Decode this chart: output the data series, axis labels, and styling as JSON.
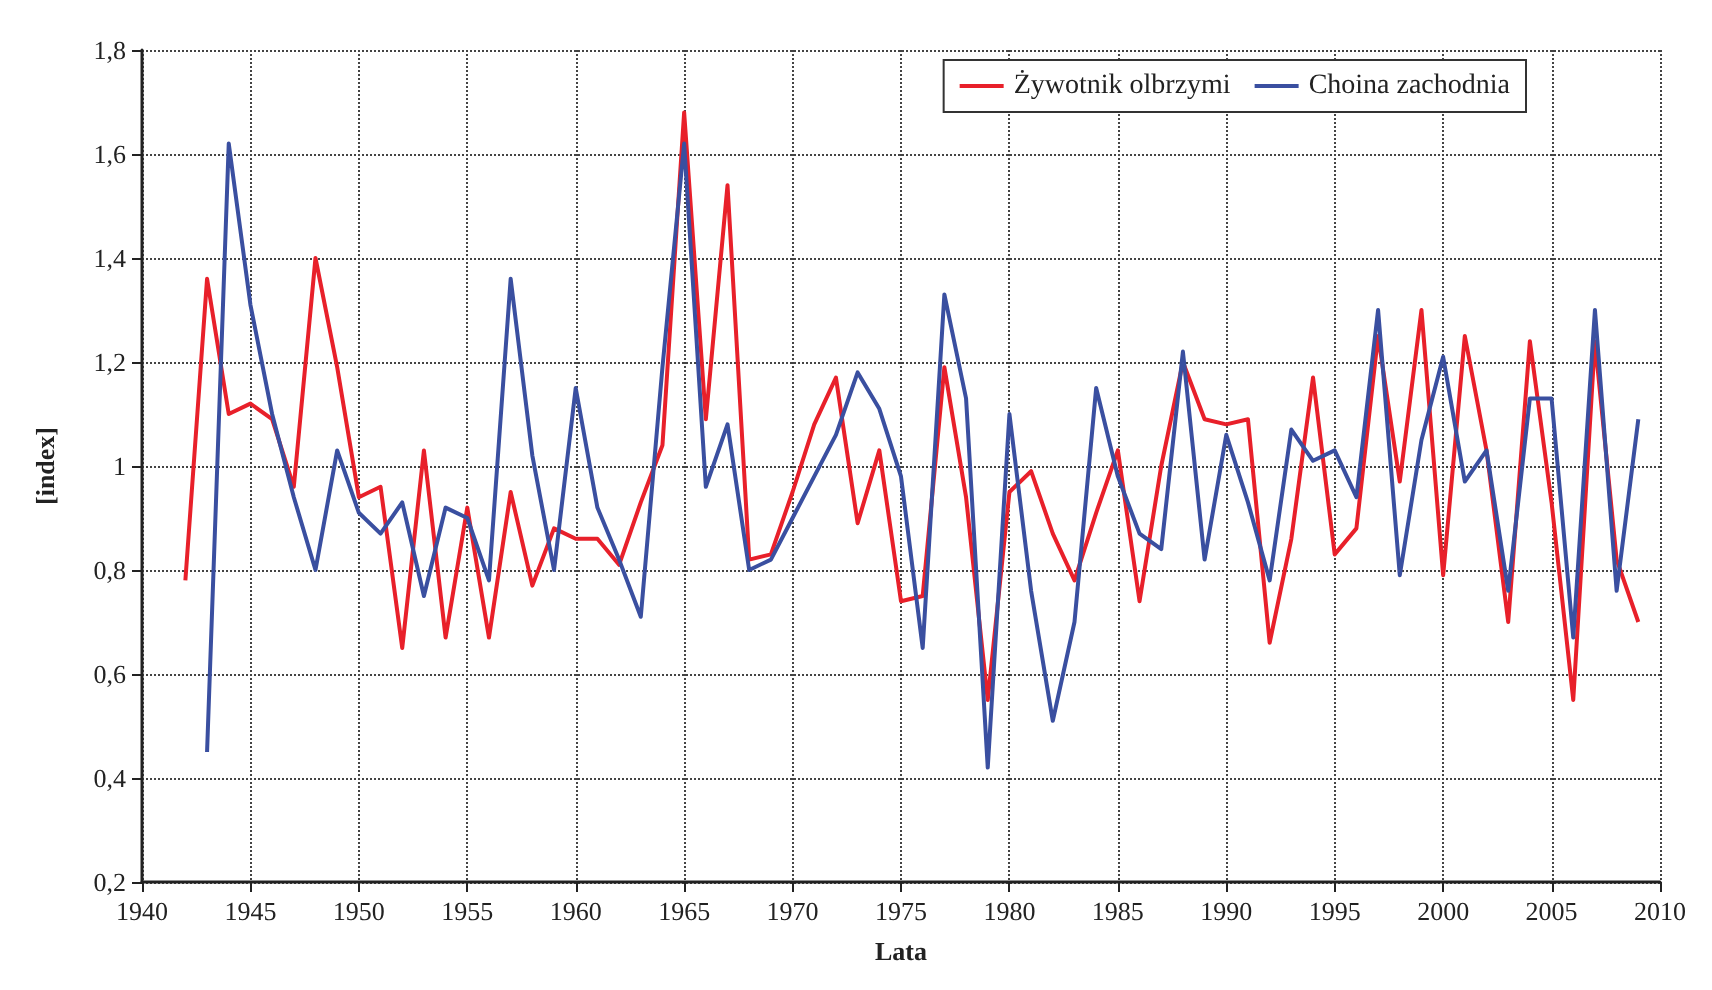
{
  "chart_data": {
    "type": "line",
    "xlabel": "Lata",
    "ylabel": "[index]",
    "xlim": [
      1940,
      2010
    ],
    "xticks": [
      1940,
      1945,
      1950,
      1955,
      1960,
      1965,
      1970,
      1975,
      1980,
      1985,
      1990,
      1995,
      2000,
      2005,
      2010
    ],
    "ylim": [
      0.2,
      1.8
    ],
    "yticks": [
      {
        "value": 0.2,
        "label": "0,2"
      },
      {
        "value": 0.4,
        "label": "0,4"
      },
      {
        "value": 0.6,
        "label": "0,6"
      },
      {
        "value": 0.8,
        "label": "0,8"
      },
      {
        "value": 1,
        "label": "1"
      },
      {
        "value": 1.2,
        "label": "1,2"
      },
      {
        "value": 1.4,
        "label": "1,4"
      },
      {
        "value": 1.6,
        "label": "1,6"
      },
      {
        "value": 1.8,
        "label": "1,8"
      }
    ],
    "grid": true,
    "legend": "top right",
    "marker": "none",
    "line_style": "solid",
    "series": [
      {
        "name": "Żywotnik olbrzymi",
        "color": "#e8202a",
        "x": [
          1942,
          1943,
          1944,
          1945,
          1946,
          1947,
          1948,
          1949,
          1950,
          1951,
          1952,
          1953,
          1954,
          1955,
          1956,
          1957,
          1958,
          1959,
          1960,
          1961,
          1962,
          1963,
          1964,
          1965,
          1966,
          1967,
          1968,
          1969,
          1970,
          1971,
          1972,
          1973,
          1974,
          1975,
          1976,
          1977,
          1978,
          1979,
          1980,
          1981,
          1982,
          1983,
          1984,
          1985,
          1986,
          1987,
          1988,
          1989,
          1990,
          1991,
          1992,
          1993,
          1994,
          1995,
          1996,
          1997,
          1998,
          1999,
          2000,
          2001,
          2002,
          2003,
          2004,
          2005,
          2006,
          2007,
          2008,
          2009
        ],
        "values": [
          0.78,
          1.36,
          1.1,
          1.12,
          1.09,
          0.96,
          1.4,
          1.19,
          0.94,
          0.96,
          0.65,
          1.03,
          0.67,
          0.92,
          0.67,
          0.95,
          0.77,
          0.88,
          0.86,
          0.86,
          0.81,
          0.93,
          1.04,
          1.68,
          1.09,
          1.54,
          0.82,
          0.83,
          0.95,
          1.08,
          1.17,
          0.89,
          1.03,
          0.74,
          0.75,
          1.19,
          0.94,
          0.55,
          0.95,
          0.99,
          0.87,
          0.78,
          0.91,
          1.03,
          0.74,
          1.0,
          1.2,
          1.09,
          1.08,
          1.09,
          0.66,
          0.86,
          1.17,
          0.83,
          0.88,
          1.25,
          0.97,
          1.3,
          0.79,
          1.25,
          1.03,
          0.7,
          1.24,
          0.93,
          0.55,
          1.24,
          0.82,
          0.7
        ]
      },
      {
        "name": "Choina zachodnia",
        "color": "#3a4fa0",
        "x": [
          1943,
          1944,
          1945,
          1946,
          1947,
          1948,
          1949,
          1950,
          1951,
          1952,
          1953,
          1954,
          1955,
          1956,
          1957,
          1958,
          1959,
          1960,
          1961,
          1962,
          1963,
          1964,
          1965,
          1966,
          1967,
          1968,
          1969,
          1970,
          1971,
          1972,
          1973,
          1974,
          1975,
          1976,
          1977,
          1978,
          1979,
          1980,
          1981,
          1982,
          1983,
          1984,
          1985,
          1986,
          1987,
          1988,
          1989,
          1990,
          1991,
          1992,
          1993,
          1994,
          1995,
          1996,
          1997,
          1998,
          1999,
          2000,
          2001,
          2002,
          2003,
          2004,
          2005,
          2006,
          2007,
          2008,
          2009
        ],
        "values": [
          0.45,
          1.62,
          1.31,
          1.1,
          0.94,
          0.8,
          1.03,
          0.91,
          0.87,
          0.93,
          0.75,
          0.92,
          0.9,
          0.78,
          1.36,
          1.02,
          0.8,
          1.15,
          0.92,
          0.82,
          0.71,
          1.19,
          1.62,
          0.96,
          1.08,
          0.8,
          0.82,
          0.9,
          0.98,
          1.06,
          1.18,
          1.11,
          0.98,
          0.65,
          1.33,
          1.13,
          0.42,
          1.1,
          0.76,
          0.51,
          0.7,
          1.15,
          0.98,
          0.87,
          0.84,
          1.22,
          0.82,
          1.06,
          0.93,
          0.78,
          1.07,
          1.01,
          1.03,
          0.94,
          1.3,
          0.79,
          1.05,
          1.21,
          0.97,
          1.03,
          0.76,
          1.13,
          1.13,
          0.67,
          1.3,
          0.76,
          1.09
        ]
      }
    ]
  }
}
